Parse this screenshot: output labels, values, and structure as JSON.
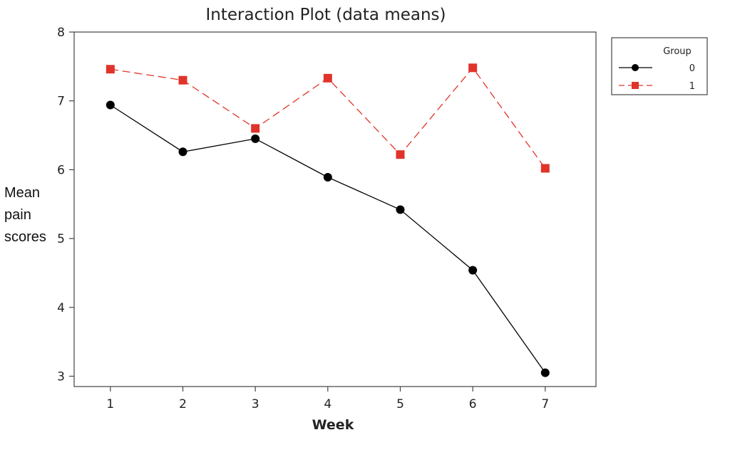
{
  "chart_data": {
    "type": "line",
    "title": "Interaction Plot (data means)",
    "xlabel": "Week",
    "ylabel": [
      "Mean",
      "pain",
      "scores"
    ],
    "x": [
      1,
      2,
      3,
      4,
      5,
      6,
      7
    ],
    "xlim": [
      0.5,
      7.7
    ],
    "ylim": [
      2.85,
      8.0
    ],
    "yticks": [
      3,
      4,
      5,
      6,
      7,
      8
    ],
    "grid": false,
    "legend": {
      "title": "Group",
      "placement": "top-right"
    },
    "series": [
      {
        "name": "0",
        "values": [
          6.94,
          6.26,
          6.45,
          5.89,
          5.42,
          4.54,
          3.05
        ],
        "color": "#000000",
        "marker": "circle",
        "line": "solid"
      },
      {
        "name": "1",
        "values": [
          7.46,
          7.3,
          6.6,
          7.33,
          6.22,
          7.48,
          6.02
        ],
        "color": "#e0342a",
        "marker": "square",
        "line": "dashed"
      }
    ]
  }
}
